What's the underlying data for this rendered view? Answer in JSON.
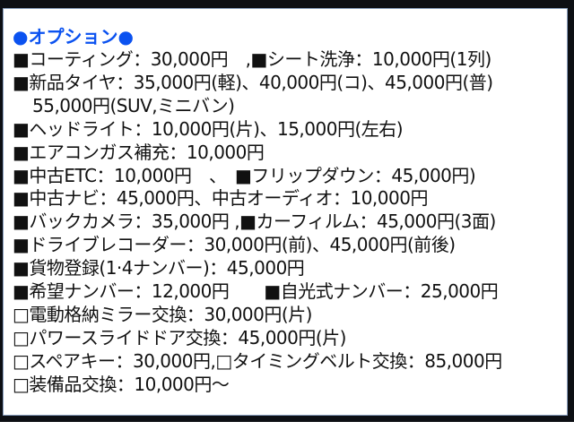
{
  "title": "●オプション●",
  "accent_color": "#0b52f0",
  "lines": [
    "■コーティング：30,000円　,■シート洗浄：10,000円(1列)",
    "■新品タイヤ：35,000円(軽)、40,000円(コ)、45,000円(普)",
    "55,000円(SUV,ミニバン)",
    "■ヘッドライト：10,000円(片)、15,000円(左右)",
    "■エアコンガス補充：10,000円",
    "■中古ETC：10,000円　、　■フリップダウン：45,000円)",
    "■中古ナビ：45,000円、中古オーディオ：10,000円",
    "■バックカメラ：35,000円 ,■カーフィルム：45,000円(3面)",
    "■ドライブレコーダー：30,000円(前)、45,000円(前後)",
    "■貨物登録(1·4ナンバー)：45,000円",
    "■希望ナンバー：12,000円　　■自光式ナンバー：25,000円",
    "□電動格納ミラー交換：30,000円(片)",
    "□パワースライドドア交換：45,000円(片)",
    "□スペアキー：30,000円,□タイミングベルト交換：85,000円",
    "□装備品交換：10,000円～"
  ]
}
